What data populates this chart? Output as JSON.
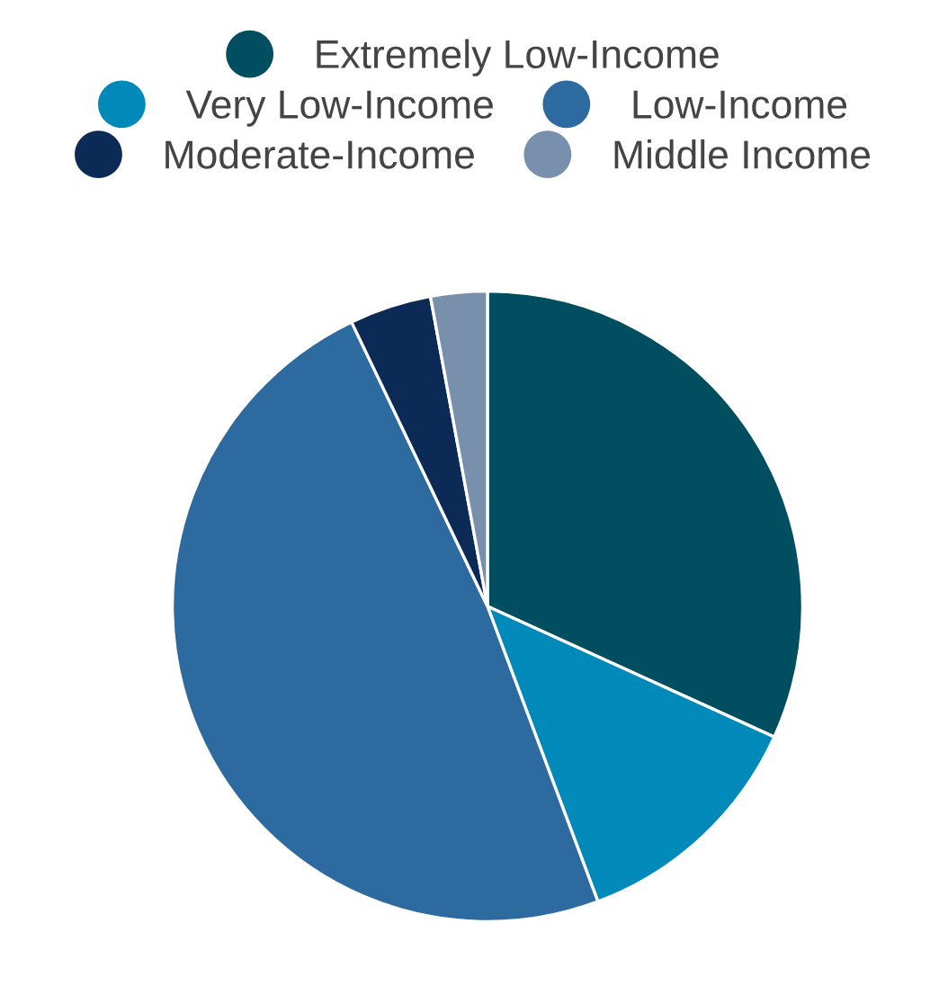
{
  "chart_data": {
    "type": "pie",
    "categories": [
      "Extremely Low-Income",
      "Very Low-Income",
      "Low-Income",
      "Moderate-Income",
      "Middle Income"
    ],
    "values": [
      31.8,
      12.5,
      48.6,
      4.2,
      2.9
    ],
    "colors": [
      "#004e5f",
      "#0089b9",
      "#2d6aa0",
      "#0b2a55",
      "#7890ab"
    ],
    "legend": "top"
  }
}
